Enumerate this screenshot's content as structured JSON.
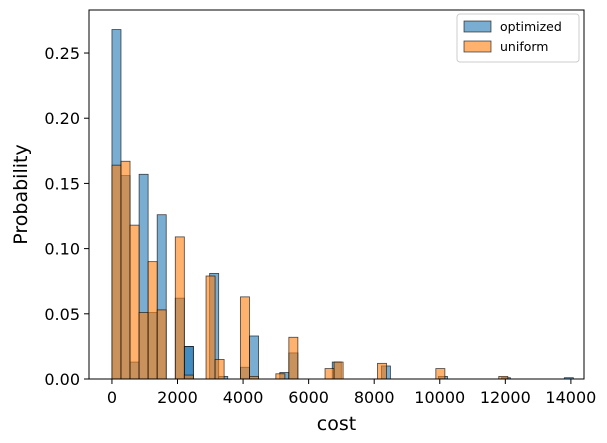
{
  "chart_data": {
    "type": "histogram",
    "title": "",
    "xlabel": "cost",
    "ylabel": "Probability",
    "xlim": [
      -700,
      14400
    ],
    "ylim": [
      0,
      0.283
    ],
    "xticks": [
      0,
      2000,
      4000,
      6000,
      8000,
      10000,
      12000,
      14000
    ],
    "xtick_labels": [
      "0",
      "2000",
      "4000",
      "6000",
      "8000",
      "10000",
      "12000",
      "14000"
    ],
    "yticks": [
      0.0,
      0.05,
      0.1,
      0.15,
      0.2,
      0.25
    ],
    "ytick_labels": [
      "0.00",
      "0.05",
      "0.10",
      "0.15",
      "0.20",
      "0.25"
    ],
    "legend_position": "top-right",
    "series": [
      {
        "name": "optimized",
        "color": "#1f77b4",
        "bin_width": 276,
        "bars": [
          {
            "x": 0,
            "value": 0.268
          },
          {
            "x": 276,
            "value": 0.156
          },
          {
            "x": 552,
            "value": 0.013
          },
          {
            "x": 828,
            "value": 0.157
          },
          {
            "x": 1104,
            "value": 0.051
          },
          {
            "x": 1380,
            "value": 0.126
          },
          {
            "x": 1932,
            "value": 0.062
          },
          {
            "x": 2208,
            "value": 0.025
          },
          {
            "x": 2208,
            "value": 0.025
          },
          {
            "x": 2980,
            "value": 0.081
          },
          {
            "x": 3256,
            "value": 0.002
          },
          {
            "x": 3920,
            "value": 0.009
          },
          {
            "x": 4196,
            "value": 0.033
          },
          {
            "x": 5120,
            "value": 0.005
          },
          {
            "x": 5396,
            "value": 0.02
          },
          {
            "x": 6720,
            "value": 0.013
          },
          {
            "x": 8220,
            "value": 0.01
          },
          {
            "x": 9960,
            "value": 0.002
          },
          {
            "x": 11880,
            "value": 0.001
          },
          {
            "x": 13800,
            "value": 0.001
          }
        ]
      },
      {
        "name": "uniform",
        "color": "#ff7f0e",
        "bin_width": 276,
        "bars": [
          {
            "x": 0,
            "value": 0.164
          },
          {
            "x": 276,
            "value": 0.167
          },
          {
            "x": 552,
            "value": 0.118
          },
          {
            "x": 828,
            "value": 0.051
          },
          {
            "x": 1104,
            "value": 0.09
          },
          {
            "x": 1380,
            "value": 0.053
          },
          {
            "x": 1932,
            "value": 0.109
          },
          {
            "x": 2208,
            "value": 0.003
          },
          {
            "x": 2870,
            "value": 0.079
          },
          {
            "x": 3146,
            "value": 0.015
          },
          {
            "x": 3920,
            "value": 0.063
          },
          {
            "x": 4196,
            "value": 0.002
          },
          {
            "x": 5000,
            "value": 0.004
          },
          {
            "x": 5396,
            "value": 0.032
          },
          {
            "x": 6500,
            "value": 0.008
          },
          {
            "x": 6776,
            "value": 0.013
          },
          {
            "x": 8100,
            "value": 0.012
          },
          {
            "x": 9880,
            "value": 0.008
          },
          {
            "x": 11800,
            "value": 0.002
          }
        ]
      }
    ]
  }
}
